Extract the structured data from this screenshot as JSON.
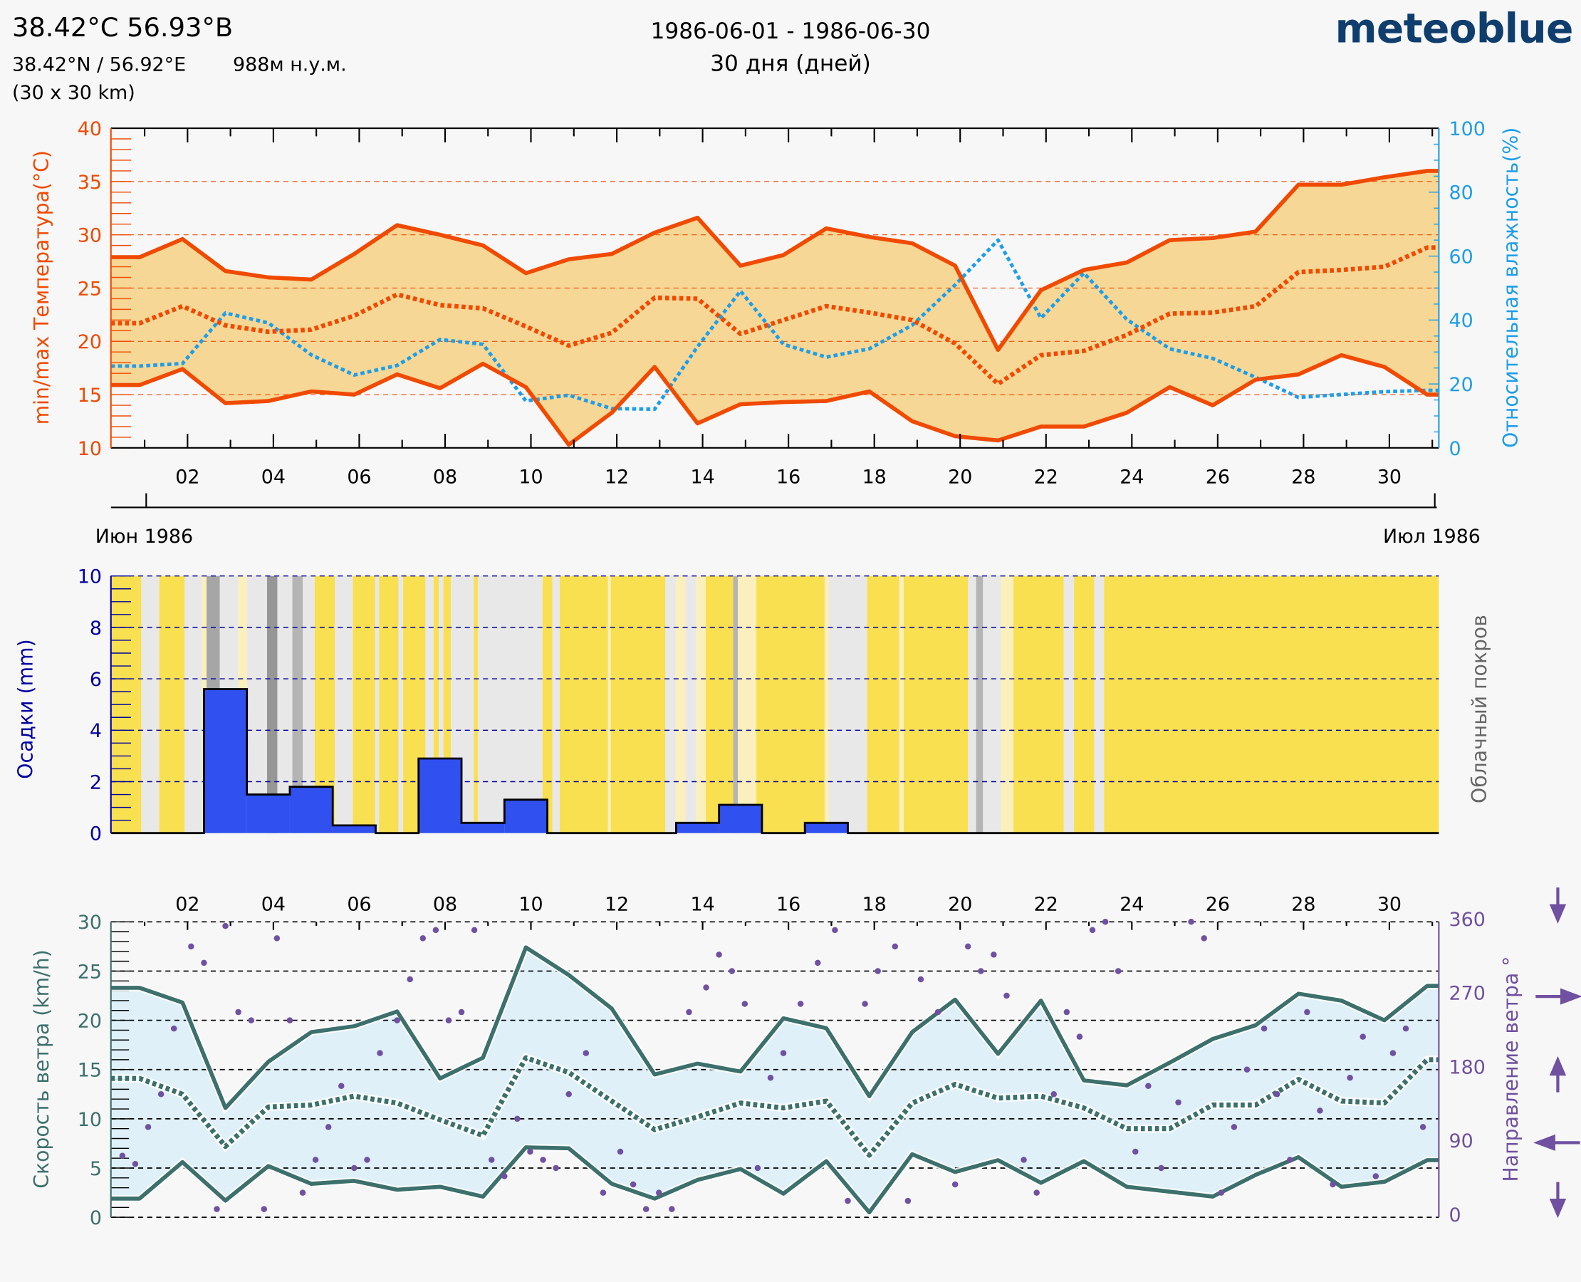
{
  "header": {
    "title": "38.42°С 56.93°В",
    "coords": "38.42°N / 56.92°E",
    "elevation": "988м н.у.м.",
    "resolution": "(30 x 30 km)",
    "period": "1986-06-01 - 1986-06-30",
    "duration": "30 дня (дней)",
    "logo": "meteoblue"
  },
  "colors": {
    "temperature": "#f04a00",
    "temperature_fill": "#f7d795",
    "humidity": "#1e9ee8",
    "precipitation": "#3050f0",
    "precip_axis": "#0000a0",
    "cloud_axis": "#666666",
    "wind": "#3d706c",
    "wind_fill": "#dff0f8",
    "direction": "#7050a0",
    "cloud_clear": "#f8e050",
    "logo": "#0f3e6e"
  },
  "chart_data": [
    {
      "type": "line",
      "title": "",
      "x_unit": "day",
      "x": [
        1,
        2,
        3,
        4,
        5,
        6,
        7,
        8,
        9,
        10,
        11,
        12,
        13,
        14,
        15,
        16,
        17,
        18,
        19,
        20,
        21,
        22,
        23,
        24,
        25,
        26,
        27,
        28,
        29,
        30,
        31
      ],
      "xtick_labels": [
        "02",
        "04",
        "06",
        "08",
        "10",
        "12",
        "14",
        "16",
        "18",
        "20",
        "22",
        "24",
        "26",
        "28",
        "30"
      ],
      "month_labels": [
        "Июн 1986",
        "Июл 1986"
      ],
      "ylabel": "min/max Температура(°C)",
      "ylim": [
        10,
        40
      ],
      "yticks": [
        "10",
        "15",
        "20",
        "25",
        "30",
        "35",
        "40"
      ],
      "y2label": "Относительная влажность(%)",
      "y2lim": [
        0,
        100
      ],
      "y2ticks": [
        "0",
        "20",
        "40",
        "60",
        "80",
        "100"
      ],
      "grid": true,
      "series": [
        {
          "key": "temp_max",
          "axis": "left",
          "style": "solid",
          "values": [
            27.9,
            29.6,
            26.6,
            26.0,
            25.8,
            28.2,
            30.9,
            30.0,
            29.0,
            26.4,
            27.7,
            28.2,
            30.2,
            31.6,
            27.1,
            28.1,
            30.6,
            29.8,
            29.2,
            27.1,
            19.2,
            24.8,
            26.7,
            27.4,
            29.5,
            29.7,
            30.3,
            34.7,
            34.7,
            35.4,
            36.0
          ]
        },
        {
          "key": "temp_mean",
          "axis": "left",
          "style": "dotted",
          "values": [
            21.7,
            23.3,
            21.5,
            20.9,
            21.1,
            22.4,
            24.4,
            23.4,
            23.1,
            21.4,
            19.6,
            20.8,
            24.1,
            24.0,
            20.7,
            22.0,
            23.3,
            22.7,
            22.0,
            19.8,
            16.0,
            18.7,
            19.1,
            20.6,
            22.6,
            22.7,
            23.3,
            26.5,
            26.7,
            27.0,
            28.8
          ]
        },
        {
          "key": "temp_min",
          "axis": "left",
          "style": "solid",
          "values": [
            15.9,
            17.4,
            14.2,
            14.4,
            15.3,
            15.0,
            16.9,
            15.6,
            17.9,
            15.7,
            10.3,
            13.3,
            17.6,
            12.3,
            14.1,
            14.3,
            14.4,
            15.3,
            12.5,
            11.1,
            10.7,
            12.0,
            12.0,
            13.3,
            15.7,
            14.0,
            16.4,
            16.9,
            18.7,
            17.6,
            15.0
          ]
        },
        {
          "key": "humidity",
          "axis": "right",
          "style": "dotted",
          "values": [
            25.6,
            26.4,
            42.2,
            39.1,
            29.1,
            22.8,
            25.8,
            33.9,
            32.4,
            14.7,
            16.5,
            12.3,
            12.1,
            31.7,
            49.1,
            32.4,
            28.4,
            31.0,
            38.4,
            51.0,
            65.0,
            40.6,
            54.7,
            40.2,
            31.0,
            28.0,
            22.1,
            15.8,
            16.7,
            17.6,
            18.0
          ]
        }
      ]
    },
    {
      "type": "bar",
      "x": [
        1,
        2,
        3,
        4,
        5,
        6,
        7,
        8,
        9,
        10,
        11,
        12,
        13,
        14,
        15,
        16,
        17,
        18,
        19,
        20,
        21,
        22,
        23,
        24,
        25,
        26,
        27,
        28,
        29,
        30
      ],
      "ylabel": "Осадки (mm)",
      "ylim": [
        0,
        10
      ],
      "yticks": [
        "0",
        "2",
        "4",
        "6",
        "8",
        "10"
      ],
      "y2label": "Облачный покров",
      "grid": true,
      "values": [
        0,
        0,
        5.6,
        1.5,
        1.8,
        0.3,
        0,
        2.9,
        0.4,
        1.3,
        0,
        0,
        0,
        0.4,
        1.1,
        0,
        0.4,
        0,
        0,
        0,
        0,
        0,
        0,
        0,
        0,
        0,
        0,
        0,
        0,
        0
      ],
      "cloud_cover_segments_day_start_end_percent": [
        [
          0.33,
          1.04,
          0
        ],
        [
          1.04,
          1.46,
          50
        ],
        [
          1.46,
          2.05,
          0
        ],
        [
          2.05,
          2.45,
          50
        ],
        [
          2.45,
          2.56,
          20
        ],
        [
          2.56,
          2.87,
          85
        ],
        [
          2.87,
          3.29,
          50
        ],
        [
          3.29,
          3.5,
          20
        ],
        [
          3.5,
          3.97,
          50
        ],
        [
          3.97,
          4.21,
          90
        ],
        [
          4.21,
          4.56,
          50
        ],
        [
          4.56,
          4.8,
          80
        ],
        [
          4.8,
          5.08,
          50
        ],
        [
          5.08,
          5.55,
          0
        ],
        [
          5.55,
          5.97,
          50
        ],
        [
          5.97,
          6.49,
          0
        ],
        [
          6.49,
          6.58,
          50
        ],
        [
          6.58,
          7.03,
          0
        ],
        [
          7.03,
          7.14,
          50
        ],
        [
          7.14,
          7.66,
          0
        ],
        [
          7.66,
          7.85,
          50
        ],
        [
          7.85,
          7.97,
          0
        ],
        [
          7.97,
          8.08,
          50
        ],
        [
          8.08,
          8.25,
          0
        ],
        [
          8.25,
          8.79,
          50
        ],
        [
          8.79,
          8.88,
          0
        ],
        [
          8.88,
          10.39,
          50
        ],
        [
          10.39,
          10.62,
          0
        ],
        [
          10.62,
          10.79,
          50
        ],
        [
          10.79,
          11.91,
          0
        ],
        [
          11.91,
          11.98,
          20
        ],
        [
          11.98,
          13.25,
          0
        ],
        [
          13.25,
          13.49,
          50
        ],
        [
          13.49,
          13.72,
          20
        ],
        [
          13.72,
          13.96,
          50
        ],
        [
          13.96,
          14.19,
          20
        ],
        [
          14.19,
          14.83,
          0
        ],
        [
          14.83,
          14.94,
          80
        ],
        [
          14.94,
          15.37,
          20
        ],
        [
          15.37,
          16.96,
          0
        ],
        [
          16.96,
          17.06,
          20
        ],
        [
          17.06,
          17.95,
          50
        ],
        [
          17.95,
          18.7,
          0
        ],
        [
          18.7,
          18.8,
          20
        ],
        [
          18.8,
          20.3,
          0
        ],
        [
          20.3,
          20.49,
          50
        ],
        [
          20.49,
          20.65,
          80
        ],
        [
          20.65,
          21.07,
          50
        ],
        [
          21.07,
          21.36,
          20
        ],
        [
          21.36,
          22.53,
          0
        ],
        [
          22.53,
          22.77,
          50
        ],
        [
          22.77,
          23.24,
          0
        ],
        [
          23.24,
          23.47,
          50
        ],
        [
          23.47,
          31.27,
          0
        ]
      ]
    },
    {
      "type": "line",
      "x": [
        1,
        2,
        3,
        4,
        5,
        6,
        7,
        8,
        9,
        10,
        11,
        12,
        13,
        14,
        15,
        16,
        17,
        18,
        19,
        20,
        21,
        22,
        23,
        24,
        25,
        26,
        27,
        28,
        29,
        30,
        31
      ],
      "xtick_labels": [
        "02",
        "04",
        "06",
        "08",
        "10",
        "12",
        "14",
        "16",
        "18",
        "20",
        "22",
        "24",
        "26",
        "28",
        "30"
      ],
      "ylabel": "Скорость ветра (km/h)",
      "ylim": [
        0,
        30
      ],
      "yticks": [
        "0",
        "5",
        "10",
        "15",
        "20",
        "25",
        "30"
      ],
      "y2label": "Направление ветра °",
      "y2lim": [
        0,
        360
      ],
      "y2ticks": [
        "0",
        "90",
        "180",
        "270",
        "360"
      ],
      "direction_arrows": [
        "arrow-down",
        "arrow-right",
        "arrow-up",
        "arrow-left",
        "arrow-down"
      ],
      "grid": true,
      "series": [
        {
          "key": "wind_max",
          "style": "solid",
          "values": [
            23.3,
            21.8,
            11.1,
            15.8,
            18.8,
            19.4,
            20.9,
            14.1,
            16.2,
            27.4,
            24.6,
            21.2,
            14.5,
            15.6,
            14.8,
            20.2,
            19.2,
            12.3,
            18.8,
            22.1,
            16.6,
            22.0,
            13.9,
            13.4,
            15.7,
            18.1,
            19.5,
            22.7,
            22.0,
            20.0,
            23.5
          ]
        },
        {
          "key": "wind_mean",
          "style": "dotted",
          "values": [
            14.1,
            12.5,
            7.2,
            11.2,
            11.4,
            12.3,
            11.6,
            9.9,
            8.3,
            16.2,
            14.7,
            11.8,
            8.9,
            10.2,
            11.6,
            11.1,
            11.8,
            6.3,
            11.6,
            13.5,
            12.1,
            12.3,
            11.1,
            9.0,
            9.0,
            11.4,
            11.4,
            14.0,
            11.8,
            11.6,
            16.0
          ]
        },
        {
          "key": "wind_min",
          "style": "solid",
          "values": [
            1.9,
            5.6,
            1.7,
            5.2,
            3.4,
            3.7,
            2.8,
            3.1,
            2.1,
            7.1,
            7.0,
            3.4,
            1.9,
            3.8,
            4.9,
            2.4,
            5.7,
            0.5,
            6.4,
            4.6,
            5.8,
            3.5,
            5.7,
            3.1,
            2.6,
            2.1,
            4.3,
            6.1,
            3.1,
            3.6,
            5.8
          ]
        }
      ],
      "direction_points_day_deg": [
        [
          0.6,
          75
        ],
        [
          0.9,
          65
        ],
        [
          1.2,
          110
        ],
        [
          1.5,
          150
        ],
        [
          1.8,
          230
        ],
        [
          2.2,
          330
        ],
        [
          2.5,
          310
        ],
        [
          2.8,
          10
        ],
        [
          3.0,
          355
        ],
        [
          3.3,
          250
        ],
        [
          3.6,
          240
        ],
        [
          3.9,
          10
        ],
        [
          4.2,
          340
        ],
        [
          4.5,
          240
        ],
        [
          4.8,
          30
        ],
        [
          5.1,
          70
        ],
        [
          5.4,
          110
        ],
        [
          5.7,
          160
        ],
        [
          6.0,
          60
        ],
        [
          6.3,
          70
        ],
        [
          6.6,
          200
        ],
        [
          7.0,
          240
        ],
        [
          7.3,
          290
        ],
        [
          7.6,
          340
        ],
        [
          7.9,
          350
        ],
        [
          8.2,
          240
        ],
        [
          8.5,
          250
        ],
        [
          8.8,
          350
        ],
        [
          9.2,
          70
        ],
        [
          9.5,
          50
        ],
        [
          9.8,
          120
        ],
        [
          10.1,
          80
        ],
        [
          10.4,
          70
        ],
        [
          10.7,
          60
        ],
        [
          11.0,
          150
        ],
        [
          11.4,
          200
        ],
        [
          11.8,
          30
        ],
        [
          12.2,
          80
        ],
        [
          12.5,
          40
        ],
        [
          12.8,
          10
        ],
        [
          13.1,
          30
        ],
        [
          13.4,
          10
        ],
        [
          13.8,
          250
        ],
        [
          14.2,
          280
        ],
        [
          14.5,
          320
        ],
        [
          14.8,
          300
        ],
        [
          15.1,
          260
        ],
        [
          15.4,
          60
        ],
        [
          15.7,
          170
        ],
        [
          16.0,
          200
        ],
        [
          16.4,
          260
        ],
        [
          16.8,
          310
        ],
        [
          17.2,
          350
        ],
        [
          17.5,
          20
        ],
        [
          17.9,
          260
        ],
        [
          18.2,
          300
        ],
        [
          18.6,
          330
        ],
        [
          18.9,
          20
        ],
        [
          19.2,
          290
        ],
        [
          19.6,
          250
        ],
        [
          20.0,
          40
        ],
        [
          20.3,
          330
        ],
        [
          20.6,
          300
        ],
        [
          20.9,
          320
        ],
        [
          21.2,
          270
        ],
        [
          21.6,
          70
        ],
        [
          21.9,
          30
        ],
        [
          22.3,
          150
        ],
        [
          22.6,
          250
        ],
        [
          22.9,
          220
        ],
        [
          23.2,
          350
        ],
        [
          23.5,
          360
        ],
        [
          23.8,
          300
        ],
        [
          24.2,
          80
        ],
        [
          24.5,
          160
        ],
        [
          24.8,
          60
        ],
        [
          25.2,
          140
        ],
        [
          25.5,
          360
        ],
        [
          25.8,
          340
        ],
        [
          26.2,
          30
        ],
        [
          26.5,
          110
        ],
        [
          26.8,
          180
        ],
        [
          27.2,
          230
        ],
        [
          27.5,
          150
        ],
        [
          27.8,
          70
        ],
        [
          28.2,
          250
        ],
        [
          28.5,
          130
        ],
        [
          28.8,
          40
        ],
        [
          29.2,
          170
        ],
        [
          29.5,
          220
        ],
        [
          29.8,
          50
        ],
        [
          30.2,
          200
        ],
        [
          30.5,
          230
        ],
        [
          30.9,
          110
        ]
      ]
    }
  ]
}
